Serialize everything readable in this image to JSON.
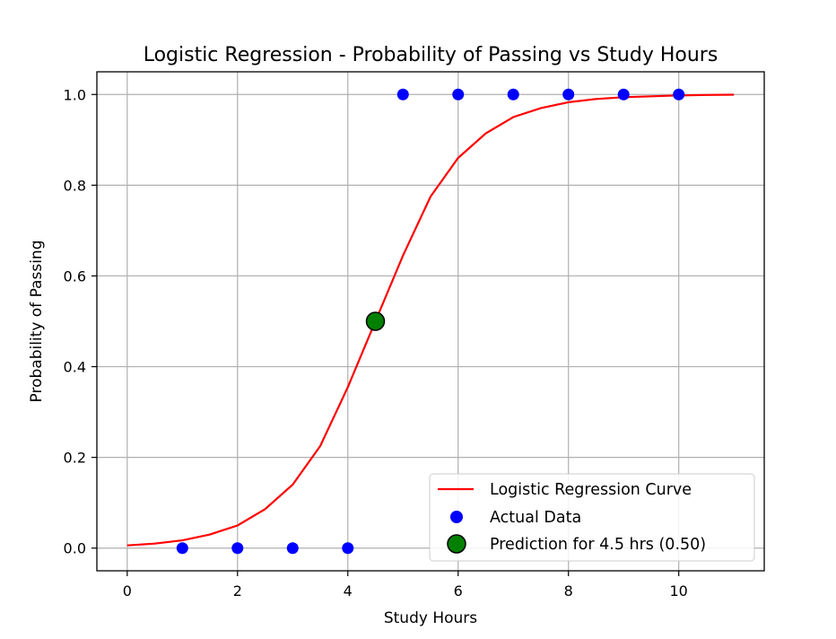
{
  "chart_data": {
    "type": "line",
    "title": "Logistic Regression - Probability of Passing vs Study Hours",
    "xlabel": "Study Hours",
    "ylabel": "Probability of Passing",
    "xlim": [
      -0.55,
      11.55
    ],
    "ylim": [
      -0.05,
      1.05
    ],
    "xticks": [
      0,
      2,
      4,
      6,
      8,
      10
    ],
    "yticks": [
      0.0,
      0.2,
      0.4,
      0.6,
      0.8,
      1.0
    ],
    "xtick_labels": [
      "0",
      "2",
      "4",
      "6",
      "8",
      "10"
    ],
    "ytick_labels": [
      "0.0",
      "0.2",
      "0.4",
      "0.6",
      "0.8",
      "1.0"
    ],
    "grid": true,
    "legend_position": "lower-right",
    "series": [
      {
        "name": "Logistic Regression Curve",
        "kind": "line",
        "color": "#ff0000",
        "x": [
          0,
          0.5,
          1,
          1.5,
          2,
          2.5,
          3,
          3.5,
          4,
          4.5,
          5,
          5.5,
          6,
          6.5,
          7,
          7.5,
          8,
          8.5,
          9,
          9.5,
          10,
          10.5,
          11
        ],
        "y": [
          0.006,
          0.01,
          0.017,
          0.03,
          0.05,
          0.086,
          0.14,
          0.225,
          0.355,
          0.5,
          0.645,
          0.775,
          0.86,
          0.914,
          0.95,
          0.97,
          0.983,
          0.99,
          0.994,
          0.996,
          0.998,
          0.999,
          0.9995
        ]
      },
      {
        "name": "Actual Data",
        "kind": "scatter",
        "color": "#0000ff",
        "x": [
          1,
          2,
          3,
          4,
          5,
          6,
          7,
          8,
          9,
          10
        ],
        "y": [
          0,
          0,
          0,
          0,
          1,
          1,
          1,
          1,
          1,
          1
        ]
      },
      {
        "name": "Prediction for 4.5 hrs (0.50)",
        "kind": "scatter",
        "color": "#008000",
        "x": [
          4.5
        ],
        "y": [
          0.5
        ]
      }
    ]
  }
}
